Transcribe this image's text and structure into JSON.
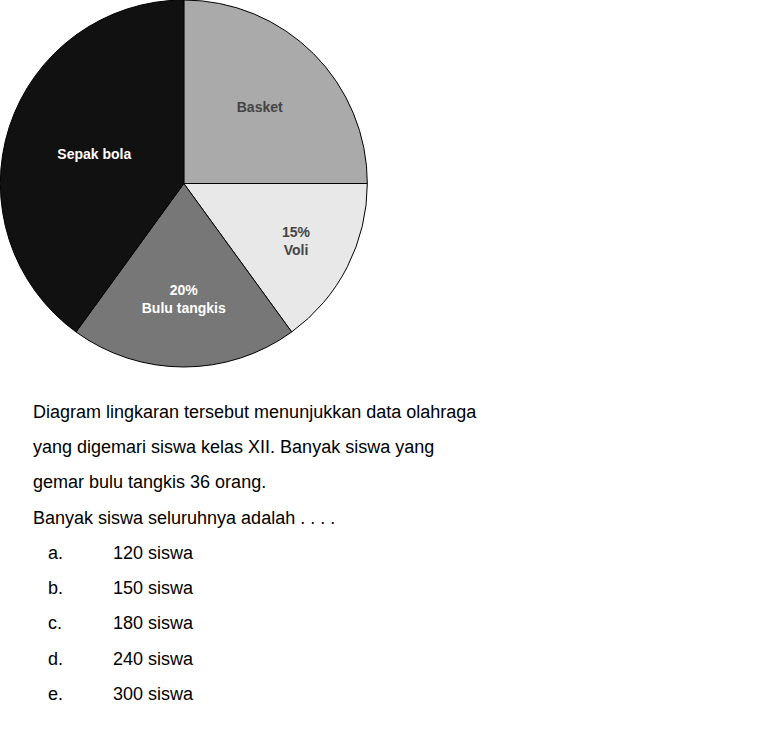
{
  "chart_data": {
    "type": "pie",
    "categories": [
      "Basket",
      "15%\nVoli",
      "20%\nBulu tangkis",
      "Sepak bola"
    ],
    "values": [
      25,
      15,
      20,
      40
    ],
    "colors": [
      "#aaaaaa",
      "#e8e8e8",
      "#777777",
      "#111111"
    ],
    "annotations": [
      [
        "Diagram lingkaran tersebut menunjukkan data olahraga"
      ],
      [
        "yang digemari siswa kelas XII. Banyak siswa yang"
      ],
      [
        "gemar bulu tangkis 36 orang."
      ],
      [
        "Banyak siswa seluruhnya adalah . . . ."
      ],
      [
        "a.",
        "120 siswa"
      ],
      [
        "b.",
        "150 siswa"
      ],
      [
        "c.",
        "180 siswa"
      ],
      [
        "d.",
        "240 siswa"
      ],
      [
        "e.",
        "300 siswa"
      ]
    ]
  }
}
